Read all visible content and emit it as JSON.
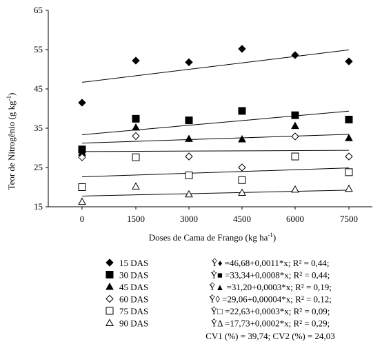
{
  "chart_data": {
    "type": "scatter",
    "xlabel": "Doses de Cama de Frango (kg ha",
    "xlabel_sup": "-1",
    "xlabel_end": ")",
    "ylabel": "Teor de Nitrogênio (g kg",
    "ylabel_sup": "-1",
    "ylabel_end": ")",
    "x_ticks": [
      "0",
      "1500",
      "3000",
      "4500",
      "6000",
      "7500"
    ],
    "x_values": [
      0,
      1500,
      3000,
      4500,
      6000,
      7500
    ],
    "y_ticks": [
      "15",
      "25",
      "35",
      "45",
      "55",
      "65"
    ],
    "ylim": [
      15,
      65
    ],
    "grid": false,
    "series": [
      {
        "name": "15 DAS",
        "marker": "diamond-filled",
        "values": [
          41.5,
          52.2,
          51.8,
          55.2,
          53.6,
          52.0
        ],
        "fit": {
          "a": 46.68,
          "b": 0.0011
        },
        "equation": "Ŷ♦ =46,68+0,0011*x; R² = 0,44;"
      },
      {
        "name": "30 DAS",
        "marker": "square-filled",
        "values": [
          29.6,
          37.4,
          37.0,
          39.4,
          38.3,
          37.2
        ],
        "fit": {
          "a": 33.34,
          "b": 0.0008
        },
        "equation": "Ŷ■ =33,34+0,0008*x; R² = 0,44;"
      },
      {
        "name": "45 DAS",
        "marker": "triangle-filled",
        "values": [
          28.8,
          35.2,
          32.3,
          32.2,
          35.6,
          32.5
        ],
        "fit": {
          "a": 31.2,
          "b": 0.0003
        },
        "equation": "Ŷ▲ =31,20+0,0003*x; R² = 0,19;"
      },
      {
        "name": "60 DAS",
        "marker": "diamond-open",
        "values": [
          27.6,
          33.0,
          27.8,
          25.0,
          32.9,
          27.8
        ],
        "fit": {
          "a": 29.06,
          "b": 4e-05
        },
        "equation": "Ŷ◊ =29,06+0,00004*x; R² = 0,12;"
      },
      {
        "name": "75 DAS",
        "marker": "square-open",
        "values": [
          20.0,
          27.6,
          23.0,
          21.8,
          27.8,
          23.8
        ],
        "fit": {
          "a": 22.63,
          "b": 0.0003
        },
        "equation": "Ŷ□ =22,63+0,0003*x; R² = 0,09;"
      },
      {
        "name": "90 DAS",
        "marker": "triangle-open",
        "values": [
          16.3,
          20.2,
          18.2,
          18.6,
          19.4,
          19.6
        ],
        "fit": {
          "a": 17.73,
          "b": 0.0002
        },
        "equation": "ŶΔ =17,73+0,0002*x; R² = 0,29;"
      }
    ],
    "cv_text": "CV1 (%) = 39,74; CV2 (%) = 24,03",
    "colors": {
      "ink": "#000000",
      "background": "#ffffff"
    }
  }
}
